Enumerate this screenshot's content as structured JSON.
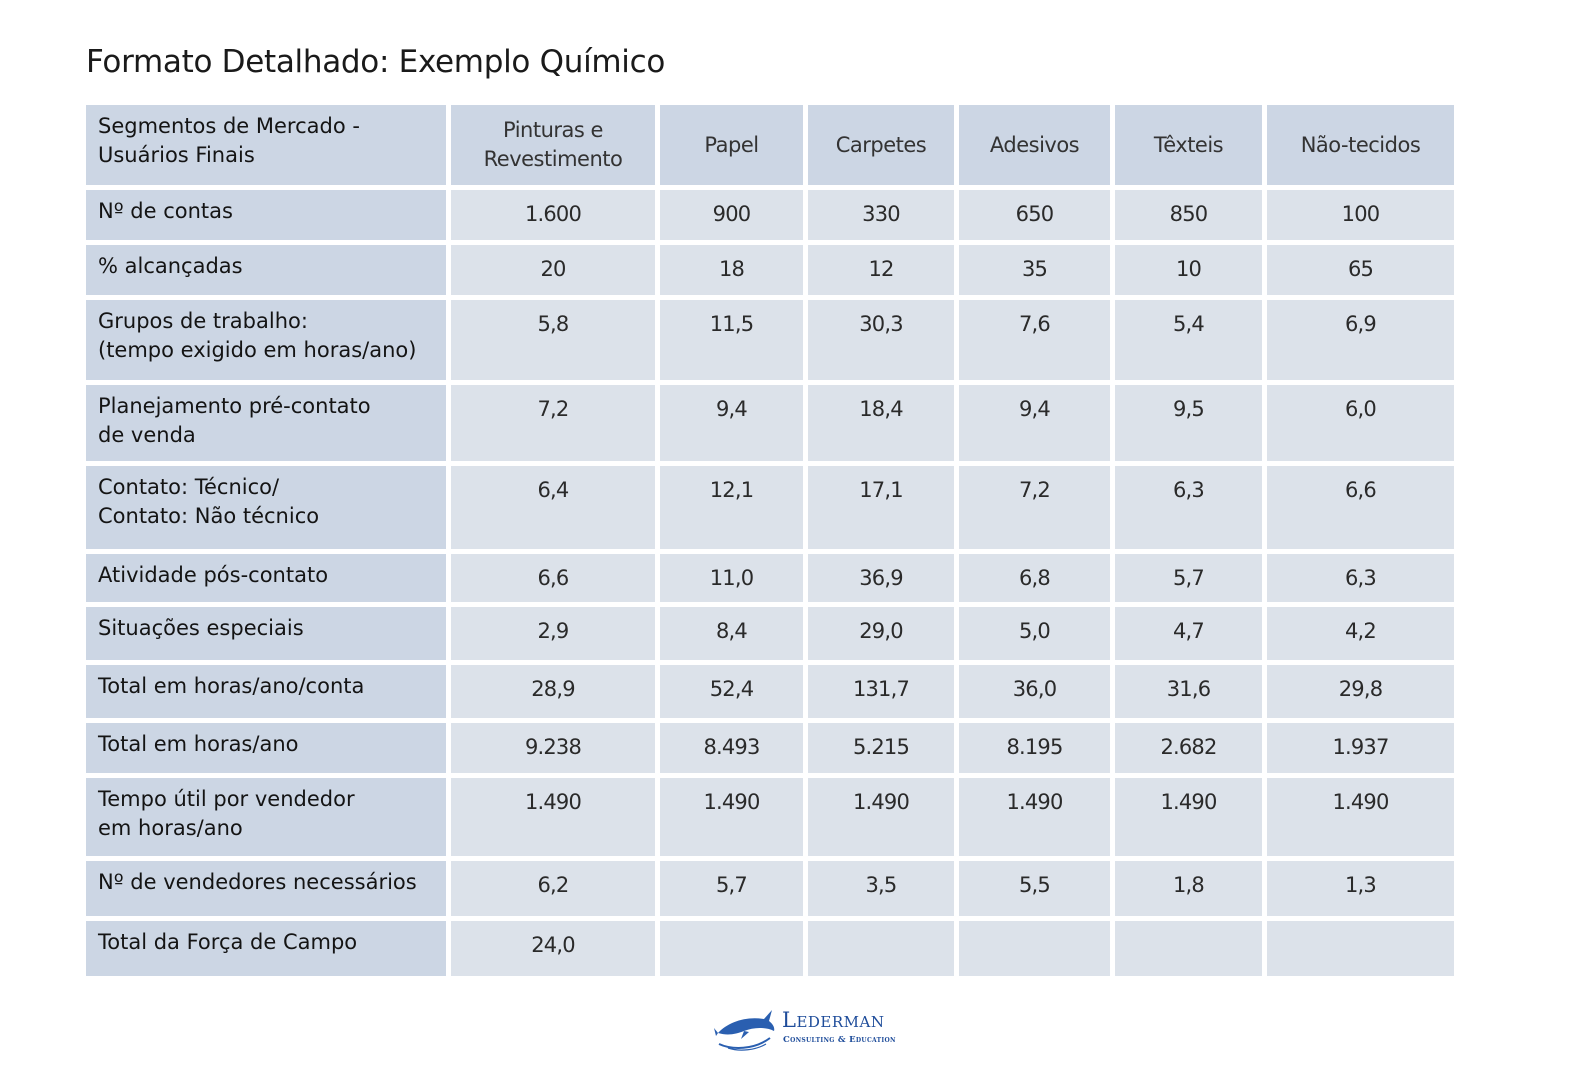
{
  "title": "Formato Detalhado: Exemplo Químico",
  "table": {
    "header_label": "Segmentos de Mercado -\nUsuários Finais",
    "columns": [
      "Pinturas e\nRevestimento",
      "Papel",
      "Carpetes",
      "Adesivos",
      "Têxteis",
      "Não-tecidos"
    ],
    "rows": [
      {
        "label": "Nº de contas",
        "values": [
          "1.600",
          "900",
          "330",
          "650",
          "850",
          "100"
        ]
      },
      {
        "label": "% alcançadas",
        "values": [
          "20",
          "18",
          "12",
          "35",
          "10",
          "65"
        ]
      },
      {
        "label": "Grupos de trabalho:\n(tempo exigido em horas/ano)",
        "values": [
          "5,8",
          "11,5",
          "30,3",
          "7,6",
          "5,4",
          "6,9"
        ]
      },
      {
        "label": "Planejamento pré-contato\nde venda",
        "values": [
          "7,2",
          "9,4",
          "18,4",
          "9,4",
          "9,5",
          "6,0"
        ]
      },
      {
        "label": "Contato: Técnico/\nContato: Não técnico",
        "values": [
          "6,4",
          "12,1",
          "17,1",
          "7,2",
          "6,3",
          "6,6"
        ]
      },
      {
        "label": "Atividade pós-contato",
        "values": [
          "6,6",
          "11,0",
          "36,9",
          "6,8",
          "5,7",
          "6,3"
        ]
      },
      {
        "label": "Situações especiais",
        "values": [
          "2,9",
          "8,4",
          "29,0",
          "5,0",
          "4,7",
          "4,2"
        ]
      },
      {
        "label": "Total em horas/ano/conta",
        "values": [
          "28,9",
          "52,4",
          "131,7",
          "36,0",
          "31,6",
          "29,8"
        ]
      },
      {
        "label": "Total em horas/ano",
        "values": [
          "9.238",
          "8.493",
          "5.215",
          "8.195",
          "2.682",
          "1.937"
        ]
      },
      {
        "label": "Tempo útil por vendedor\nem horas/ano",
        "values": [
          "1.490",
          "1.490",
          "1.490",
          "1.490",
          "1.490",
          "1.490"
        ]
      },
      {
        "label": "Nº de vendedores necessários",
        "values": [
          "6,2",
          "5,7",
          "3,5",
          "5,5",
          "1,8",
          "1,3"
        ]
      },
      {
        "label": "Total da Força de Campo",
        "values": [
          "24,0",
          "",
          "",
          "",
          "",
          ""
        ]
      }
    ]
  },
  "logo": {
    "name": "Lederman",
    "tagline": "Consulting & Education"
  },
  "colors": {
    "header_fill": "#ccd6e4",
    "cell_fill": "#dce2ea",
    "brand_blue": "#1e4c9a"
  }
}
